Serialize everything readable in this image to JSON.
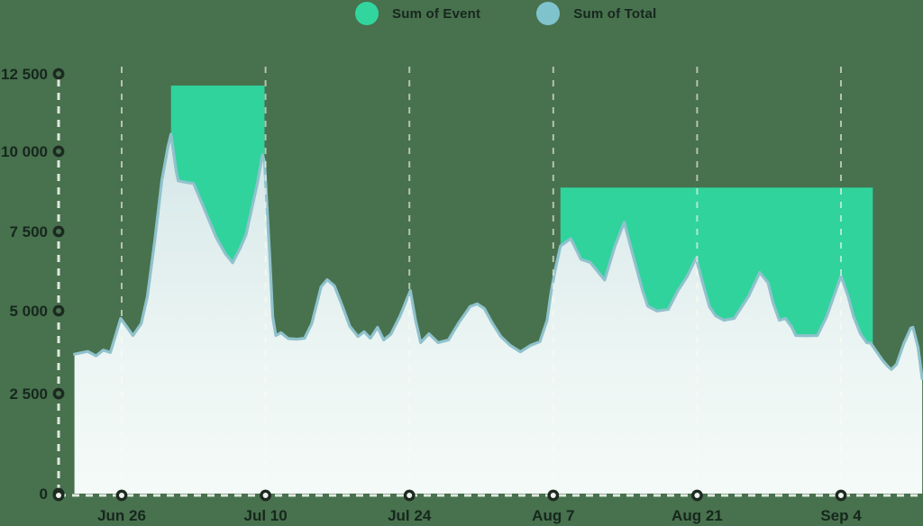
{
  "page": {
    "background_color": "#48714E",
    "text_color": "#16271D"
  },
  "legend": {
    "items": [
      {
        "label": "Sum of Event",
        "color": "#32D59E"
      },
      {
        "label": "Sum of Total",
        "color": "#7FC4CD"
      }
    ]
  },
  "chart_data": {
    "type": "area",
    "title": "",
    "xlabel": "",
    "ylabel": "",
    "legend_position": "top-center",
    "grid": "dashed vertical line at each date tick, dashed axes",
    "x_axis": {
      "tick_labels": [
        "Jun 26",
        "Jul 10",
        "Jul 24",
        "Aug 7",
        "Aug 21",
        "Sep 4"
      ],
      "tick_days": [
        0,
        14,
        28,
        42,
        56,
        70
      ],
      "unit": "days relative to Jun 26"
    },
    "y_axis": {
      "tick_labels": [
        "12 500",
        "10 000",
        "7 500",
        "5 000",
        "2 500",
        "0"
      ],
      "tick_values": [
        12500,
        10000,
        7500,
        5000,
        2500,
        0
      ],
      "range": [
        0,
        12500
      ]
    },
    "series": [
      {
        "name": "Sum of Event",
        "style": "flat-topped area blocks (drawn behind Total)",
        "color": "#30D39C",
        "blocks": [
          {
            "from_day": 4.8,
            "to_day": 13.9,
            "value": 12000
          },
          {
            "from_day": 42.7,
            "to_day": 73.1,
            "value": 9000
          }
        ]
      },
      {
        "name": "Sum of Total",
        "style": "area with line stroke, pale gradient fill (drawn in front)",
        "line_color": "#8FC2CC",
        "fill_gradient": [
          "#C8DEE0",
          "#DDECEC",
          "#EDF6F4",
          "#F4FAF8"
        ],
        "points": [
          [
            -4.6,
            4100
          ],
          [
            -3.3,
            4180
          ],
          [
            -2.5,
            4050
          ],
          [
            -1.8,
            4220
          ],
          [
            -1.1,
            4150
          ],
          [
            -0.1,
            5150
          ],
          [
            0.5,
            4900
          ],
          [
            1.1,
            4650
          ],
          [
            1.9,
            5000
          ],
          [
            2.5,
            5800
          ],
          [
            3.2,
            7400
          ],
          [
            3.9,
            9200
          ],
          [
            4.5,
            10200
          ],
          [
            4.8,
            10570
          ],
          [
            5.3,
            9500
          ],
          [
            5.5,
            9200
          ],
          [
            6.3,
            9150
          ],
          [
            7.0,
            9120
          ],
          [
            8.1,
            8330
          ],
          [
            9.2,
            7530
          ],
          [
            10.1,
            7050
          ],
          [
            10.8,
            6790
          ],
          [
            11.5,
            7200
          ],
          [
            12.1,
            7610
          ],
          [
            13.2,
            9120
          ],
          [
            13.7,
            9960
          ],
          [
            13.9,
            9750
          ],
          [
            14.4,
            7000
          ],
          [
            14.7,
            5200
          ],
          [
            15.0,
            4650
          ],
          [
            15.5,
            4730
          ],
          [
            16.2,
            4560
          ],
          [
            17.1,
            4540
          ],
          [
            17.8,
            4570
          ],
          [
            18.5,
            5000
          ],
          [
            19.4,
            6080
          ],
          [
            20.0,
            6290
          ],
          [
            20.7,
            6110
          ],
          [
            21.5,
            5500
          ],
          [
            22.2,
            4920
          ],
          [
            23.0,
            4620
          ],
          [
            23.6,
            4760
          ],
          [
            24.2,
            4570
          ],
          [
            24.9,
            4890
          ],
          [
            25.5,
            4520
          ],
          [
            26.2,
            4690
          ],
          [
            27.1,
            5230
          ],
          [
            28.1,
            5970
          ],
          [
            28.6,
            5100
          ],
          [
            29.1,
            4440
          ],
          [
            29.9,
            4700
          ],
          [
            30.8,
            4440
          ],
          [
            31.8,
            4520
          ],
          [
            32.8,
            5020
          ],
          [
            33.9,
            5500
          ],
          [
            34.6,
            5580
          ],
          [
            35.3,
            5440
          ],
          [
            36.1,
            5000
          ],
          [
            36.9,
            4620
          ],
          [
            37.8,
            4360
          ],
          [
            38.8,
            4170
          ],
          [
            39.8,
            4360
          ],
          [
            40.7,
            4470
          ],
          [
            41.4,
            5100
          ],
          [
            41.8,
            5950
          ],
          [
            42.2,
            6600
          ],
          [
            42.7,
            7280
          ],
          [
            43.7,
            7500
          ],
          [
            44.7,
            6890
          ],
          [
            45.6,
            6800
          ],
          [
            47.0,
            6280
          ],
          [
            48.0,
            7280
          ],
          [
            48.9,
            7980
          ],
          [
            49.8,
            6970
          ],
          [
            50.7,
            5960
          ],
          [
            51.2,
            5510
          ],
          [
            52.1,
            5370
          ],
          [
            53.2,
            5420
          ],
          [
            54.1,
            5950
          ],
          [
            55.0,
            6370
          ],
          [
            55.9,
            6930
          ],
          [
            56.5,
            6240
          ],
          [
            57.2,
            5500
          ],
          [
            57.8,
            5230
          ],
          [
            58.6,
            5100
          ],
          [
            59.6,
            5150
          ],
          [
            61.0,
            5800
          ],
          [
            62.1,
            6500
          ],
          [
            62.9,
            6200
          ],
          [
            63.4,
            5600
          ],
          [
            64.0,
            5100
          ],
          [
            64.6,
            5150
          ],
          [
            65.2,
            4900
          ],
          [
            65.6,
            4650
          ],
          [
            66.7,
            4640
          ],
          [
            67.7,
            4650
          ],
          [
            68.6,
            5200
          ],
          [
            69.3,
            5800
          ],
          [
            70.0,
            6400
          ],
          [
            70.7,
            5800
          ],
          [
            71.2,
            5230
          ],
          [
            71.9,
            4700
          ],
          [
            72.5,
            4440
          ],
          [
            72.9,
            4420
          ],
          [
            73.4,
            4200
          ],
          [
            74.1,
            3900
          ],
          [
            74.6,
            3730
          ],
          [
            74.9,
            3650
          ],
          [
            75.4,
            3800
          ],
          [
            76.1,
            4400
          ],
          [
            76.8,
            4870
          ],
          [
            77.0,
            4890
          ],
          [
            77.5,
            4300
          ],
          [
            77.9,
            3380
          ]
        ]
      }
    ]
  }
}
